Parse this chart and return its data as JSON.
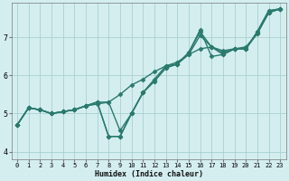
{
  "xlabel": "Humidex (Indice chaleur)",
  "bg_color": "#d4eef0",
  "grid_color": "#aacfcf",
  "line_color": "#2a7a6e",
  "xlim": [
    -0.5,
    23.5
  ],
  "ylim": [
    3.8,
    7.9
  ],
  "xticks": [
    0,
    1,
    2,
    3,
    4,
    5,
    6,
    7,
    8,
    9,
    10,
    11,
    12,
    13,
    14,
    15,
    16,
    17,
    18,
    19,
    20,
    21,
    22,
    23
  ],
  "yticks": [
    4,
    5,
    6,
    7
  ],
  "lines": [
    {
      "x": [
        0,
        1,
        2,
        3,
        4,
        5,
        6,
        7,
        8,
        9,
        10,
        11,
        12,
        13,
        14,
        15,
        16,
        17,
        18,
        19,
        20,
        21,
        22,
        23
      ],
      "y": [
        4.7,
        5.15,
        5.1,
        5.0,
        5.05,
        5.1,
        5.2,
        5.3,
        5.3,
        5.5,
        5.75,
        5.9,
        6.1,
        6.25,
        6.35,
        6.55,
        6.7,
        6.75,
        6.65,
        6.7,
        6.75,
        7.1,
        7.65,
        7.75
      ]
    },
    {
      "x": [
        0,
        1,
        2,
        3,
        4,
        5,
        6,
        7,
        8,
        9,
        10,
        11,
        12,
        13,
        14,
        15,
        16,
        17,
        18,
        19,
        20,
        21,
        22,
        23
      ],
      "y": [
        4.7,
        5.15,
        5.1,
        5.0,
        5.05,
        5.1,
        5.2,
        5.3,
        4.4,
        4.4,
        5.0,
        5.55,
        5.85,
        6.2,
        6.3,
        6.6,
        7.15,
        6.75,
        6.55,
        6.7,
        6.7,
        7.15,
        7.7,
        7.75
      ]
    },
    {
      "x": [
        0,
        1,
        2,
        3,
        4,
        5,
        6,
        7,
        8,
        9,
        10,
        11,
        12,
        13,
        14,
        15,
        16,
        17,
        18,
        19,
        20,
        21,
        22,
        23
      ],
      "y": [
        4.7,
        5.15,
        5.1,
        5.0,
        5.05,
        5.1,
        5.2,
        5.3,
        4.4,
        4.4,
        5.0,
        5.55,
        5.85,
        6.2,
        6.3,
        6.55,
        7.05,
        6.75,
        6.6,
        6.7,
        6.7,
        7.1,
        7.65,
        7.75
      ]
    },
    {
      "x": [
        0,
        1,
        2,
        3,
        4,
        5,
        6,
        7,
        8,
        9,
        10,
        11,
        12,
        13,
        14,
        15,
        16,
        17,
        18,
        19,
        20,
        21,
        22,
        23
      ],
      "y": [
        4.7,
        5.15,
        5.1,
        5.0,
        5.05,
        5.1,
        5.2,
        5.25,
        5.3,
        4.55,
        5.0,
        5.55,
        5.9,
        6.25,
        6.3,
        6.6,
        7.2,
        6.5,
        6.55,
        6.7,
        6.7,
        7.15,
        7.7,
        7.75
      ]
    }
  ],
  "marker": "D",
  "markersize": 2.5,
  "linewidth": 1.0
}
